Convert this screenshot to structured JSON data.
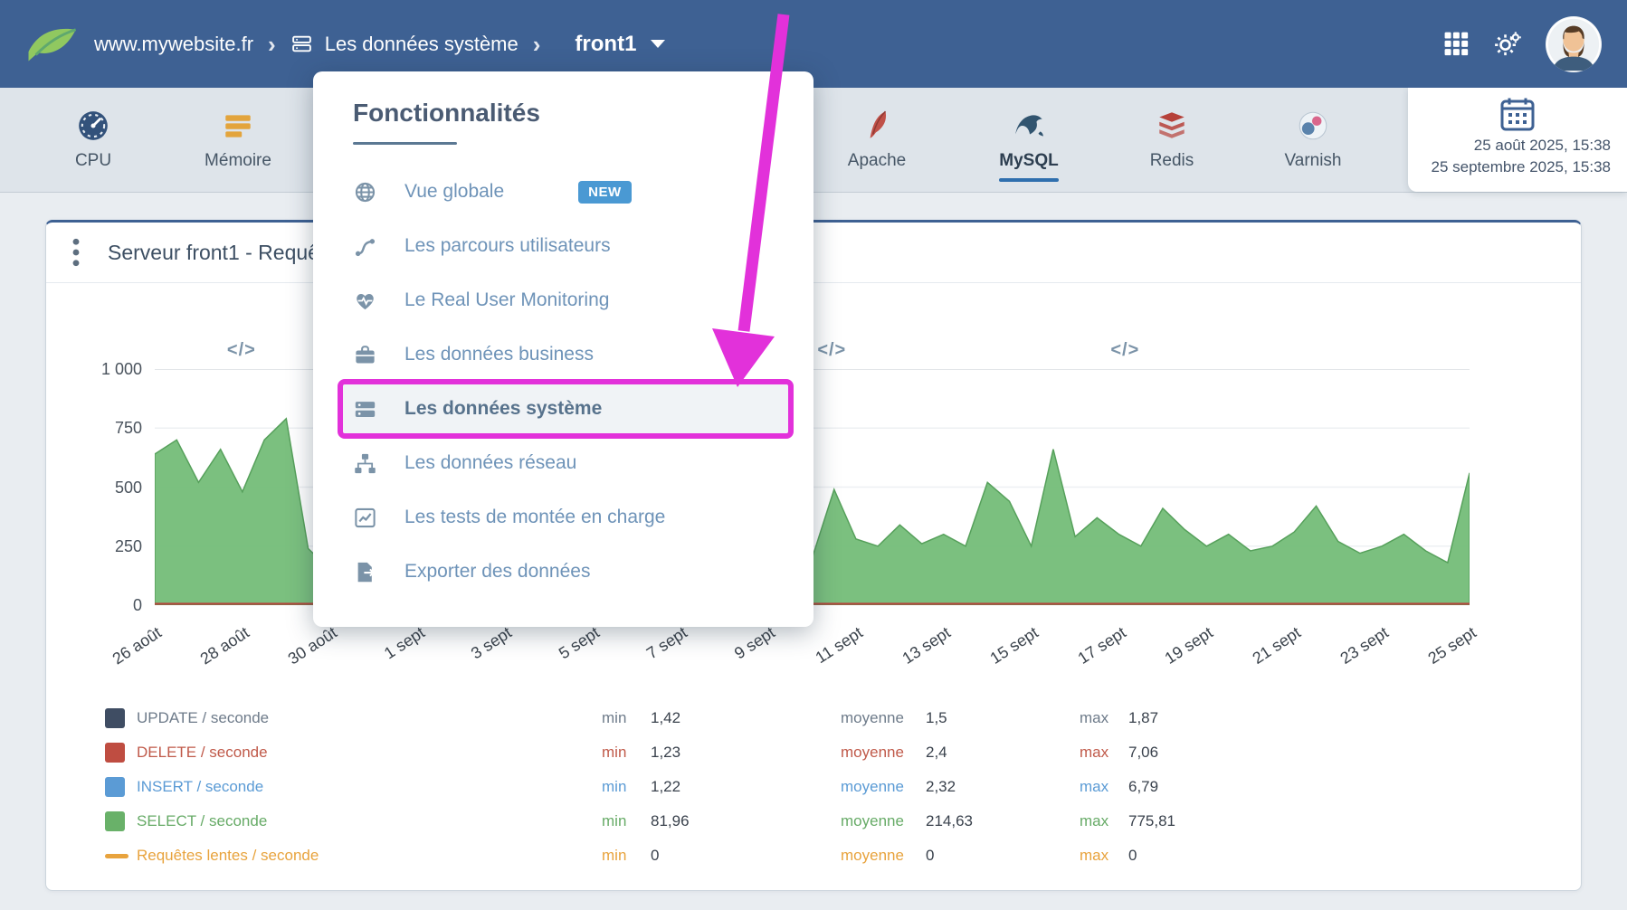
{
  "colors": {
    "navbar_bg": "#3e6193",
    "toolbar_bg": "#dee4ea",
    "page_bg": "#e9edf1",
    "accent_blue": "#2f6fae",
    "badge_blue": "#4a99d3",
    "annotation_magenta": "#e231da",
    "select_green": "#74bd78",
    "menu_text": "#6e93b8",
    "menu_icon": "#7b93a8"
  },
  "navbar": {
    "site": "www.mywebsite.fr",
    "section": "Les données système",
    "server": "front1"
  },
  "toolbar": {
    "tabs": [
      {
        "label": "CPU",
        "icon": "cpu-gauge-icon",
        "active": false
      },
      {
        "label": "Mémoire",
        "icon": "memory-icon",
        "active": false
      },
      {
        "label": "Apache",
        "icon": "apache-feather-icon",
        "active": false
      },
      {
        "label": "MySQL",
        "icon": "mysql-dolphin-icon",
        "active": true
      },
      {
        "label": "Redis",
        "icon": "redis-cube-icon",
        "active": false
      },
      {
        "label": "Varnish",
        "icon": "varnish-logo-icon",
        "active": false
      }
    ],
    "date_range": {
      "start": "25 août 2025, 15:38",
      "end": "25 septembre 2025, 15:38"
    }
  },
  "menu": {
    "title": "Fonctionnalités",
    "items": [
      {
        "name": "menu-item-vue-globale",
        "label": "Vue globale",
        "icon": "globe-icon",
        "badge": "NEW"
      },
      {
        "name": "menu-item-parcours-utilisateurs",
        "label": "Les parcours utilisateurs",
        "icon": "route-icon"
      },
      {
        "name": "menu-item-real-user-monitoring",
        "label": "Le Real User Monitoring",
        "icon": "heart-pulse-icon"
      },
      {
        "name": "menu-item-donnees-business",
        "label": "Les données business",
        "icon": "briefcase-icon"
      },
      {
        "name": "menu-item-donnees-systeme",
        "label": "Les données système",
        "icon": "server-icon",
        "highlighted": true
      },
      {
        "name": "menu-item-donnees-reseau",
        "label": "Les données réseau",
        "icon": "network-icon"
      },
      {
        "name": "menu-item-tests-montee-charge",
        "label": "Les tests de montée en charge",
        "icon": "chart-line-icon"
      },
      {
        "name": "menu-item-exporter-donnees",
        "label": "Exporter des données",
        "icon": "export-icon"
      }
    ]
  },
  "card": {
    "title": "Serveur front1 - Requê"
  },
  "chart_data": {
    "type": "area",
    "x": [
      "26 août",
      "28 août",
      "30 août",
      "1 sept",
      "3 sept",
      "5 sept",
      "7 sept",
      "9 sept",
      "11 sept",
      "13 sept",
      "15 sept",
      "17 sept",
      "19 sept",
      "21 sept",
      "23 sept",
      "25 sept"
    ],
    "yticks": [
      "1 000",
      "750",
      "500",
      "250",
      "0"
    ],
    "ylim": [
      0,
      1000
    ],
    "deploy_marker_glyph": "</>",
    "deploy_markers_pct": [
      6.6,
      51.5,
      73.8
    ],
    "series": [
      {
        "name": "UPDATE / seconde",
        "color": "#3f4d63",
        "min": 1.42,
        "avg": 1.5,
        "max": 1.87
      },
      {
        "name": "DELETE / seconde",
        "color": "#bf4d41",
        "min": 1.23,
        "avg": 2.4,
        "max": 7.06
      },
      {
        "name": "INSERT / seconde",
        "color": "#5b9bd5",
        "min": 1.22,
        "avg": 2.32,
        "max": 6.79
      },
      {
        "name": "SELECT / seconde",
        "color": "#74bd78",
        "min": 81.96,
        "avg": 214.63,
        "max": 775.81,
        "values": [
          640,
          700,
          520,
          660,
          480,
          700,
          790,
          240,
          150,
          560,
          180,
          140,
          220,
          180,
          150,
          260,
          200,
          160,
          300,
          220,
          180,
          340,
          260,
          190,
          230,
          170,
          280,
          210,
          240,
          180,
          200,
          490,
          280,
          250,
          340,
          260,
          300,
          250,
          520,
          440,
          250,
          660,
          290,
          370,
          300,
          250,
          410,
          320,
          250,
          300,
          230,
          250,
          310,
          420,
          270,
          220,
          250,
          300,
          230,
          180,
          560
        ]
      },
      {
        "name": "Requêtes lentes / seconde",
        "color": "#e8a33d",
        "min": 0,
        "avg": 0,
        "max": 0
      }
    ]
  },
  "legend": {
    "min_label": "min",
    "avg_label": "moyenne",
    "max_label": "max",
    "rows": [
      {
        "name": "UPDATE / seconde",
        "swatch": "box",
        "color": "#3f4d63",
        "label_color": "#6e7b8a",
        "min": "1,42",
        "avg": "1,5",
        "max": "1,87"
      },
      {
        "name": "DELETE / seconde",
        "swatch": "box",
        "color": "#bf4d41",
        "label_color": "#c05a4a",
        "min": "1,23",
        "avg": "2,4",
        "max": "7,06"
      },
      {
        "name": "INSERT / seconde",
        "swatch": "box",
        "color": "#5b9bd5",
        "label_color": "#5b9bd5",
        "min": "1,22",
        "avg": "2,32",
        "max": "6,79"
      },
      {
        "name": "SELECT / seconde",
        "swatch": "box",
        "color": "#69b169",
        "label_color": "#67ab67",
        "min": "81,96",
        "avg": "214,63",
        "max": "775,81"
      },
      {
        "name": "Requêtes lentes / seconde",
        "swatch": "line",
        "color": "#e8a33d",
        "label_color": "#e8a33d",
        "min": "0",
        "avg": "0",
        "max": "0"
      }
    ]
  }
}
